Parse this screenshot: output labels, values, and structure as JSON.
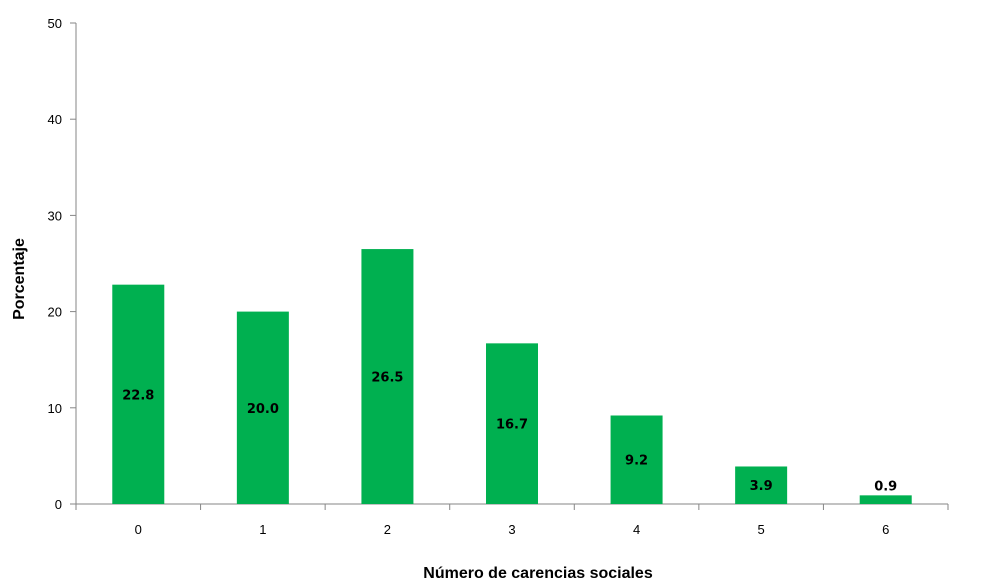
{
  "chart_data": {
    "type": "bar",
    "categories": [
      "0",
      "1",
      "2",
      "3",
      "4",
      "5",
      "6"
    ],
    "values": [
      22.8,
      20.0,
      26.5,
      16.7,
      9.2,
      3.9,
      0.9
    ],
    "value_labels": [
      "22.8",
      "20.0",
      "26.5",
      "16.7",
      "9.2",
      "3.9",
      "0.9"
    ],
    "xlabel": "Número de carencias sociales",
    "ylabel": "Porcentaje",
    "ylim": [
      0,
      50
    ],
    "yticks": [
      "0",
      "10",
      "20",
      "30",
      "40",
      "50"
    ],
    "bar_color": "#00b050",
    "grid": false,
    "legend": "none"
  }
}
